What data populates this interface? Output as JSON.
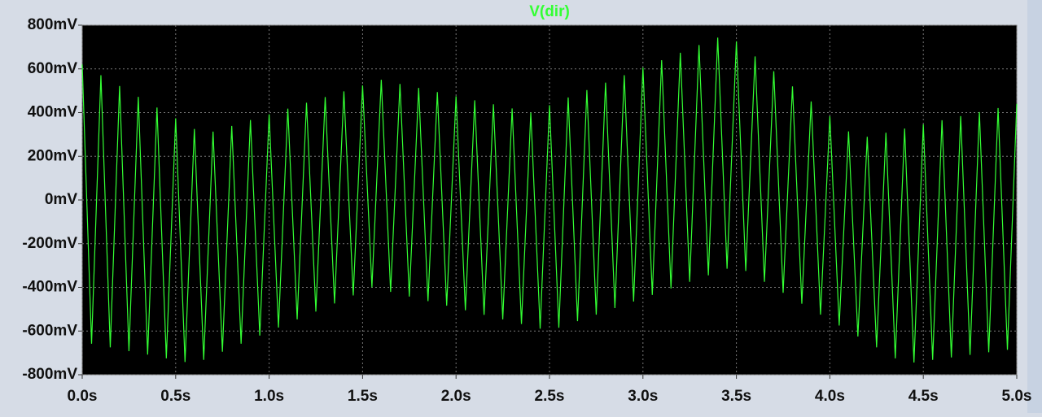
{
  "chart_data": {
    "type": "line",
    "title": "V(dir)",
    "grid": true,
    "xlim": [
      0,
      5
    ],
    "ylim": [
      -800,
      800
    ],
    "xticks": [
      {
        "value": 0,
        "label": "0.0s"
      },
      {
        "value": 0.5,
        "label": "0.5s"
      },
      {
        "value": 1,
        "label": "1.0s"
      },
      {
        "value": 1.5,
        "label": "1.5s"
      },
      {
        "value": 2,
        "label": "2.0s"
      },
      {
        "value": 2.5,
        "label": "2.5s"
      },
      {
        "value": 3,
        "label": "3.0s"
      },
      {
        "value": 3.5,
        "label": "3.5s"
      },
      {
        "value": 4,
        "label": "4.0s"
      },
      {
        "value": 4.5,
        "label": "4.5s"
      },
      {
        "value": 5,
        "label": "5.0s"
      }
    ],
    "yticks": [
      {
        "value": 800,
        "label": "800mV"
      },
      {
        "value": 600,
        "label": "600mV"
      },
      {
        "value": 400,
        "label": "400mV"
      },
      {
        "value": 200,
        "label": "200mV"
      },
      {
        "value": 0,
        "label": "0mV"
      },
      {
        "value": -200,
        "label": "-200mV"
      },
      {
        "value": -400,
        "label": "-400mV"
      },
      {
        "value": -600,
        "label": "-600mV"
      },
      {
        "value": -800,
        "label": "-800mV"
      }
    ],
    "x": [
      0,
      0.05,
      0.1,
      0.15,
      0.2,
      0.25,
      0.3,
      0.35,
      0.4,
      0.45,
      0.5,
      0.55,
      0.6,
      0.65,
      0.7,
      0.75,
      0.8,
      0.85,
      0.9,
      0.95,
      1,
      1.05,
      1.1,
      1.15,
      1.2,
      1.25,
      1.3,
      1.35,
      1.4,
      1.45,
      1.5,
      1.55,
      1.6,
      1.65,
      1.7,
      1.75,
      1.8,
      1.85,
      1.9,
      1.95,
      2,
      2.05,
      2.1,
      2.15,
      2.2,
      2.25,
      2.3,
      2.35,
      2.4,
      2.45,
      2.5,
      2.55,
      2.6,
      2.65,
      2.7,
      2.75,
      2.8,
      2.85,
      2.9,
      2.95,
      3,
      3.05,
      3.1,
      3.15,
      3.2,
      3.25,
      3.3,
      3.35,
      3.4,
      3.45,
      3.5,
      3.55,
      3.6,
      3.65,
      3.7,
      3.75,
      3.8,
      3.85,
      3.9,
      3.95,
      4,
      4.05,
      4.1,
      4.15,
      4.2,
      4.25,
      4.3,
      4.35,
      4.4,
      4.45,
      4.5,
      4.55,
      4.6,
      4.65,
      4.7,
      4.75,
      4.8,
      4.85,
      4.9,
      4.95,
      5
    ],
    "series": [
      {
        "name": "V(dir)",
        "color": "#33ff33",
        "values": [
          620,
          -658,
          571,
          -675,
          522,
          -692,
          472,
          -708,
          423,
          -725,
          374,
          -742,
          325,
          -732,
          313,
          -695,
          339,
          -658,
          366,
          -621,
          392,
          -584,
          418,
          -547,
          445,
          -511,
          471,
          -474,
          497,
          -437,
          524,
          -400,
          550,
          -421,
          531,
          -442,
          513,
          -463,
          494,
          -484,
          475,
          -505,
          456,
          -526,
          438,
          -547,
          419,
          -568,
          400,
          -589,
          434,
          -585,
          469,
          -555,
          503,
          -525,
          537,
          -495,
          571,
          -465,
          606,
          -435,
          640,
          -405,
          674,
          -375,
          709,
          -345,
          743,
          -315,
          726,
          -325,
          657,
          -375,
          589,
          -425,
          520,
          -475,
          451,
          -525,
          383,
          -575,
          314,
          -625,
          289,
          -675,
          308,
          -725,
          327,
          -744,
          346,
          -732,
          365,
          -721,
          384,
          -709,
          402,
          -697,
          421,
          -686,
          440
        ]
      }
    ]
  }
}
